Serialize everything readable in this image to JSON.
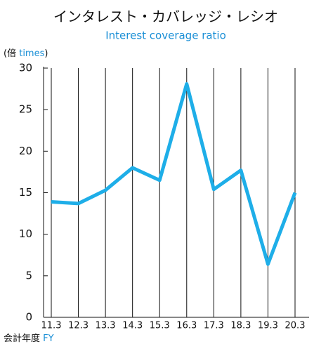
{
  "chart_data": {
    "type": "line",
    "title": "インタレスト・カバレッジ・レシオ",
    "subtitle": "Interest coverage ratio",
    "y_label": {
      "ja": "(倍",
      "en": "times",
      "close": ")"
    },
    "x_label": {
      "ja": "会計年度",
      "en": "FY"
    },
    "categories": [
      "11.3",
      "12.3",
      "13.3",
      "14.3",
      "15.3",
      "16.3",
      "17.3",
      "18.3",
      "19.3",
      "20.3"
    ],
    "series": [
      {
        "name": "Interest coverage ratio",
        "color": "#1eaee8",
        "values": [
          13.9,
          13.7,
          15.3,
          18.0,
          16.5,
          28.1,
          15.4,
          17.7,
          6.4,
          15.0
        ]
      }
    ],
    "ylim": [
      0,
      30
    ],
    "yticks": [
      0,
      5,
      10,
      15,
      20,
      25,
      30
    ],
    "grid": "vertical"
  }
}
